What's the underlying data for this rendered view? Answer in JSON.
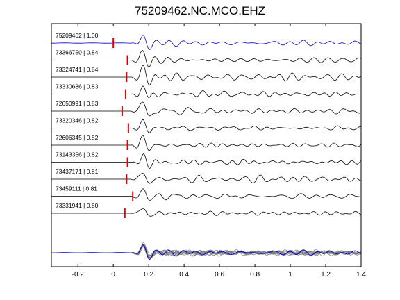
{
  "chart_data": {
    "type": "line",
    "title": "75209462.NC.MCO.EHZ",
    "xlim": [
      -0.35,
      1.4
    ],
    "xticks": [
      -0.2,
      0,
      0.2,
      0.4,
      0.6,
      0.8,
      1,
      1.2,
      1.4
    ],
    "xtick_labels": [
      "-0.2",
      "0",
      "0.2",
      "0.4",
      "0.6",
      "0.8",
      "1",
      "1.2",
      "1.4"
    ],
    "grid": false,
    "colors": {
      "reference": "#0000cc",
      "trace": "#000000",
      "pick": "#dd0000",
      "stack": "#777777"
    },
    "traces": [
      {
        "label": "75209462 | 1.00",
        "pick": 0.0,
        "reference": true
      },
      {
        "label": "73366750 | 0.84",
        "pick": 0.08
      },
      {
        "label": "73324741 | 0.84",
        "pick": 0.075
      },
      {
        "label": "73330686 | 0.83",
        "pick": 0.07
      },
      {
        "label": "72650991 | 0.83",
        "pick": 0.05
      },
      {
        "label": "73320346 | 0.82",
        "pick": 0.085
      },
      {
        "label": "72606345 | 0.82",
        "pick": 0.08
      },
      {
        "label": "73143356 | 0.82",
        "pick": 0.08
      },
      {
        "label": "73437171 | 0.81",
        "pick": 0.075
      },
      {
        "label": "73459111 | 0.81",
        "pick": 0.11
      },
      {
        "label": "73331941 | 0.80",
        "pick": 0.065
      }
    ],
    "stack": {
      "reference_line": true,
      "overlay_count": 10
    }
  }
}
